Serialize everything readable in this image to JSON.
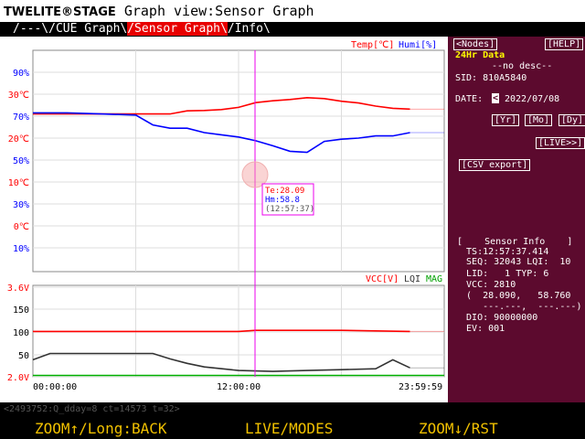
{
  "app": {
    "brand": "TWELITE®STAGE",
    "view_title": "Graph view:Sensor Graph"
  },
  "tabs": [
    {
      "label": "/---\\"
    },
    {
      "label": "/CUE Graph\\"
    },
    {
      "label": "/Sensor Graph\\"
    },
    {
      "label": "/Info\\"
    }
  ],
  "graph": {
    "legend_temp": "Temp[℃]",
    "legend_humi": "Humi[%]",
    "legend_vcc": "VCC[V]",
    "legend_lqi": "LQI",
    "legend_mag": "MAG",
    "upper_ticks": [
      "90%",
      "30℃",
      "70%",
      "20℃",
      "50%",
      "10℃",
      "30%",
      "0℃",
      "10%"
    ],
    "lower_ticks": [
      "3.6V",
      "150",
      "100",
      "50",
      "2.0V"
    ],
    "x_ticks": [
      "00:00:00",
      "12:00:00",
      "23:59:59"
    ],
    "tooltip": {
      "temp": "Te:28.09",
      "humi": "Hm:58.8",
      "time": "(12:57:37)"
    },
    "colors": {
      "temperature": "#ff0000",
      "humidity": "#0000ff",
      "vcc": "#ff0000",
      "lqi": "#333333",
      "mag": "#00b000",
      "cursor": "#ee00ee"
    }
  },
  "chart_data": {
    "type": "line",
    "x_axis": {
      "start": "00:00:00",
      "end": "23:59:59"
    },
    "cursor_time": "12:57:37",
    "upper": {
      "series": [
        {
          "name": "Temp[℃]",
          "unit": "℃",
          "x_hours": [
            0,
            2,
            4,
            6,
            8,
            9,
            10,
            11,
            12,
            13,
            14,
            15,
            16,
            17,
            18,
            19,
            20,
            21,
            22
          ],
          "values": [
            25.5,
            25.5,
            25.5,
            25.5,
            25.5,
            26.2,
            26.3,
            26.5,
            27,
            28.09,
            28.5,
            28.8,
            29.2,
            29.0,
            28.4,
            28.0,
            27.3,
            26.8,
            26.6
          ]
        },
        {
          "name": "Humi[%]",
          "unit": "%",
          "x_hours": [
            0,
            2,
            4,
            6,
            7,
            8,
            9,
            10,
            11,
            12,
            13,
            14,
            15,
            16,
            17,
            18,
            19,
            20,
            21,
            22
          ],
          "values": [
            71.5,
            71.5,
            71.0,
            70.5,
            66,
            64.5,
            64.5,
            62.5,
            61.5,
            60.5,
            58.8,
            56.5,
            54,
            53.5,
            58.5,
            59.5,
            60,
            61,
            61,
            62.5
          ]
        }
      ]
    },
    "lower": {
      "series": [
        {
          "name": "VCC[V]",
          "unit": "V",
          "x_hours": [
            0,
            6,
            12,
            13,
            18,
            22
          ],
          "values": [
            2.81,
            2.81,
            2.81,
            2.83,
            2.83,
            2.81
          ]
        },
        {
          "name": "LQI",
          "x_hours": [
            0,
            1,
            4,
            7,
            8,
            9,
            10,
            12,
            14,
            16,
            18,
            20,
            21,
            22
          ],
          "values": [
            38,
            52,
            52,
            52,
            40,
            30,
            22,
            14,
            12,
            14,
            16,
            18,
            38,
            20
          ]
        },
        {
          "name": "MAG",
          "x_hours": [
            0,
            24
          ],
          "values": [
            3,
            3
          ]
        }
      ]
    }
  },
  "sidebar": {
    "nodes_button": "<Nodes]",
    "help_button": "[HELP]",
    "data_header": "24Hr Data",
    "description": "--no desc--",
    "sid": "SID: 810A5840",
    "date_label": "DATE:",
    "date_value": "2022/07/08",
    "date_prev_icon": "<",
    "yr_button": "[Yr]",
    "mo_button": "[Mo]",
    "dy_button": "[Dy]",
    "live_button": "[LIVE>>]",
    "csv_button": "[CSV export]",
    "info_header": "[    Sensor Info    ]",
    "info_lines": [
      "  TS:12:57:37.414",
      "  SEQ: 32043 LQI:  10",
      "  LID:   1 TYP: 6",
      "  VCC: 2810",
      "  (  28.090,   58.760",
      "     ---.---,  ---.---)",
      "  DIO: 90000000",
      "  EV: 001"
    ]
  },
  "footer": {
    "status": "<2493752:Q_dday=8 ct=14573 t=32>",
    "left_button": "ZOOM↑/Long:BACK",
    "center_button": "LIVE/MODES",
    "right_button": "ZOOM↓/RST"
  }
}
